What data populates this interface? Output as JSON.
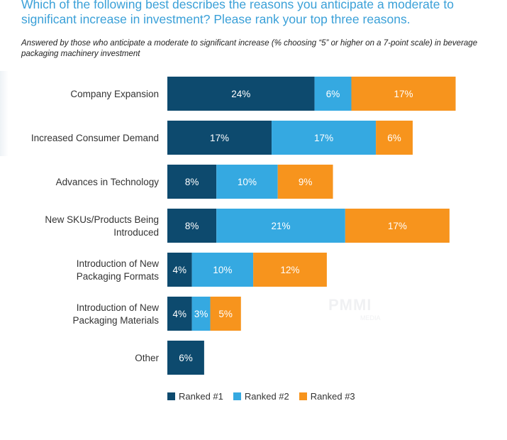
{
  "title": "Which of the following best describes the reasons you anticipate a moderate to significant increase in investment? Please rank your top three reasons.",
  "subtitle": "Answered by those who anticipate a moderate to significant increase (% choosing “5” or higher on a 7-point scale) in beverage packaging machinery investment",
  "watermark": {
    "main": "PMMI",
    "sub": "MEDIA"
  },
  "colors": {
    "ranked1": "#0d4a6e",
    "ranked2": "#35a9e1",
    "ranked3": "#f7941d",
    "title": "#3aa0d8"
  },
  "legend": [
    {
      "label": "Ranked #1",
      "color": "#0d4a6e"
    },
    {
      "label": "Ranked #2",
      "color": "#35a9e1"
    },
    {
      "label": "Ranked #3",
      "color": "#f7941d"
    }
  ],
  "chart_data": {
    "type": "bar",
    "orientation": "horizontal",
    "stacked": true,
    "title": "Which of the following best describes the reasons you anticipate a moderate to significant increase in investment? Please rank your top three reasons.",
    "subtitle": "Answered by those who anticipate a moderate to significant increase (% choosing “5” or higher on a 7-point scale) in beverage packaging machinery investment",
    "categories": [
      [
        "Company Expansion"
      ],
      [
        "Increased Consumer Demand"
      ],
      [
        "Advances in Technology"
      ],
      [
        "New SKUs/Products Being",
        "Introduced"
      ],
      [
        "Introduction of New",
        "Packaging Formats"
      ],
      [
        "Introduction of New",
        "Packaging Materials"
      ],
      [
        "Other"
      ]
    ],
    "series": [
      {
        "name": "Ranked #1",
        "values": [
          24,
          17,
          8,
          8,
          4,
          4,
          6
        ]
      },
      {
        "name": "Ranked #2",
        "values": [
          6,
          17,
          10,
          21,
          10,
          3,
          null
        ]
      },
      {
        "name": "Ranked #3",
        "values": [
          17,
          6,
          9,
          17,
          12,
          5,
          null
        ]
      }
    ],
    "unit": "%",
    "grid": false,
    "legend_position": "bottom"
  }
}
